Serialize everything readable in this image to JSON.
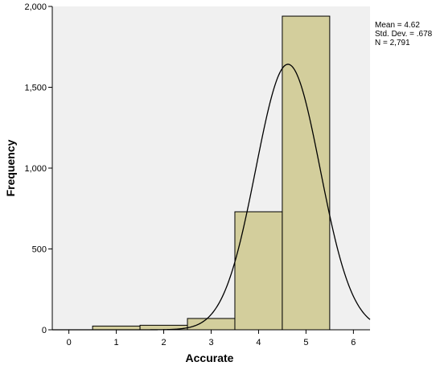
{
  "chart_data": {
    "type": "bar",
    "subtype": "histogram",
    "title": "",
    "xlabel": "Accurate",
    "ylabel": "Frequency",
    "xlim": [
      -0.35,
      6.35
    ],
    "ylim": [
      0,
      2000
    ],
    "x_ticks": [
      0,
      1,
      2,
      3,
      4,
      5,
      6
    ],
    "x_tick_labels": [
      "0",
      "1",
      "2",
      "3",
      "4",
      "5",
      "6"
    ],
    "y_ticks": [
      0,
      500,
      1000,
      1500,
      2000
    ],
    "y_tick_labels": [
      "0",
      "500",
      "1,000",
      "1,500",
      "2,000"
    ],
    "bins": [
      {
        "start": 0.5,
        "end": 1.5,
        "value": 23
      },
      {
        "start": 1.5,
        "end": 2.5,
        "value": 28
      },
      {
        "start": 2.5,
        "end": 3.5,
        "value": 70
      },
      {
        "start": 3.5,
        "end": 4.5,
        "value": 730
      },
      {
        "start": 4.5,
        "end": 5.5,
        "value": 1940
      }
    ],
    "normal_curve": {
      "mean": 4.62,
      "std_dev": 0.678,
      "n": 2791,
      "bin_width": 1
    },
    "stats_lines": [
      "Mean = 4.62",
      "Std. Dev. = .678",
      "N = 2,791"
    ],
    "grid": false,
    "colors": {
      "bar_fill": "#d3ce9c",
      "bar_stroke": "#000000",
      "plot_background": "#f0f0f0",
      "curve": "#000000"
    }
  }
}
